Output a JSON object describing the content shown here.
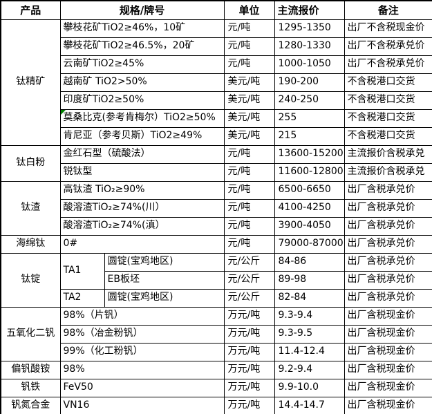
{
  "header": {
    "product": "产品",
    "spec": "规格/牌号",
    "unit": "单位",
    "price": "主流报价",
    "note": "备注"
  },
  "flag_color": "#008000",
  "rows": [
    {
      "product": "钛精矿",
      "product_span": 7,
      "spec": "攀枝花矿TiO2≥46%，10矿",
      "unit": "元/吨",
      "price": "1295-1350",
      "note": "出厂不含税现金价"
    },
    {
      "spec": "攀枝花矿TiO2≥46.5%，20矿",
      "unit": "元/吨",
      "price": "1280-1330",
      "note": "出厂不含税承兑价"
    },
    {
      "spec": "云南矿TiO2≥45%",
      "unit": "元/吨",
      "price": "1000-1050",
      "note": "出厂不含税承兑价"
    },
    {
      "spec": "越南矿 TiO2>50%",
      "unit": "美元/吨",
      "price": "190-200",
      "note": "不含税港口交货"
    },
    {
      "spec": "印度矿TiO2≥50%",
      "unit": "美元/吨",
      "price": "240-250",
      "note": "不含税港口交货"
    },
    {
      "spec": "莫桑比克(参考肯梅尔）TiO2≥50%",
      "unit": "美元/吨",
      "price": "255",
      "note": "不含税港口交货",
      "flag": true
    },
    {
      "spec": "肯尼亚（参考贝斯）TiO2≥49%",
      "unit": "美元/吨",
      "price": "215",
      "note": "不含税港口交货"
    },
    {
      "product": "钛白粉",
      "product_span": 2,
      "spec": "金红石型（硫酸法）",
      "unit": "元/吨",
      "price": "13600-15200",
      "note": "主流报价含税承兑"
    },
    {
      "spec": "锐钛型",
      "unit": "元/吨",
      "price": "11600-12800",
      "note": "主流报价含税承兑"
    },
    {
      "product": "钛渣",
      "product_span": 3,
      "spec": "高钛渣 TiO₂≥90%",
      "unit": "元/吨",
      "price": "6500-6650",
      "note": "出厂含税承兑价"
    },
    {
      "spec": "酸溶渣TiO₂≥74%(川）",
      "unit": "元/吨",
      "price": "4100-4250",
      "note": "出厂含税承兑价"
    },
    {
      "spec": "酸溶渣TiO₂≥74%(滇）",
      "unit": "元/吨",
      "price": "3900-4050",
      "note": "出厂含税承兑价"
    },
    {
      "product": "海绵钛",
      "product_span": 1,
      "spec": "0#",
      "unit": "元/吨",
      "price": "79000-87000",
      "note": "出厂含税承兑价"
    },
    {
      "product": "钛锭",
      "product_span": 3,
      "ta": "TA1",
      "ta_span": 2,
      "spec": "圆锭(宝鸡地区)",
      "split": true,
      "unit": "元/公斤",
      "price": "84-86",
      "note": "出厂含税承兑价"
    },
    {
      "spec": "EB板坯",
      "split": true,
      "unit": "元/公斤",
      "price": "89-98",
      "note": "出厂含税承兑价"
    },
    {
      "ta": "TA2",
      "ta_span": 1,
      "spec": "圆锭(宝鸡地区)",
      "split": true,
      "unit": "元/公斤",
      "price": "82-84",
      "note": "出厂含税承兑价"
    },
    {
      "product": "五氧化二钒",
      "product_span": 3,
      "spec": "98%（片钒）",
      "unit": "万元/吨",
      "price": "9.3-9.4",
      "note": "出厂含税现金价"
    },
    {
      "spec": "98%（冶金粉钒）",
      "unit": "万元/吨",
      "price": "9.3-9.5",
      "note": "出厂含税现金价"
    },
    {
      "spec": "99%（化工粉钒）",
      "unit": "万元/吨",
      "price": "11.4-12.4",
      "note": "出厂含税现金价"
    },
    {
      "product": "偏钒酸铵",
      "product_span": 1,
      "spec": "98%",
      "unit": "万元/吨",
      "price": "9.2-9.4",
      "note": "出厂含税现金价"
    },
    {
      "product": "钒铁",
      "product_span": 1,
      "spec": "FeV50",
      "unit": "万元/吨",
      "price": "9.9-10.0",
      "note": "出厂含税现金价"
    },
    {
      "product": "钒氮合金",
      "product_span": 1,
      "spec": "VN16",
      "unit": "万元/吨",
      "price": "14.4-14.7",
      "note": "出厂含税现金价"
    }
  ]
}
